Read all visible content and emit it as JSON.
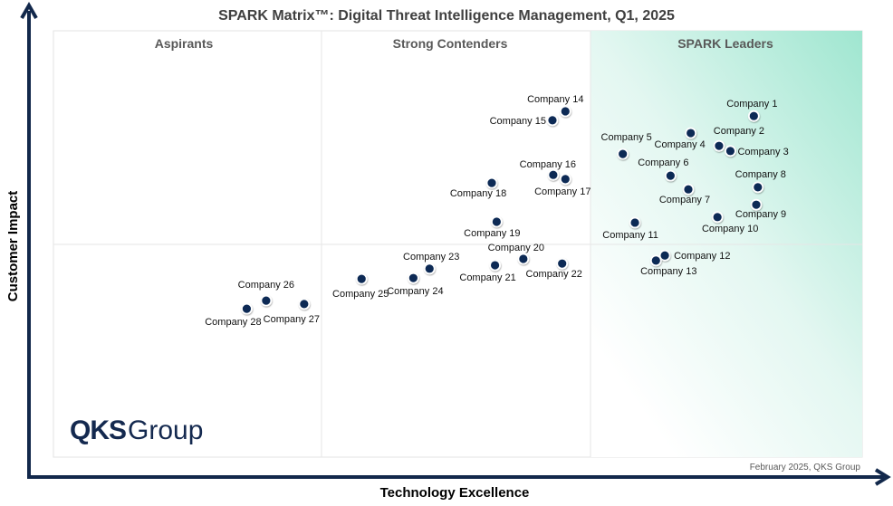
{
  "chart_data": {
    "type": "scatter",
    "title": "SPARK Matrix™: Digital Threat Intelligence Management, Q1, 2025",
    "xlabel": "Technology Excellence",
    "ylabel": "Customer Impact",
    "xlim": [
      0,
      100
    ],
    "ylim": [
      0,
      100
    ],
    "grid": false,
    "quadrants": [
      "Aspirants",
      "Strong Contenders",
      "SPARK Leaders"
    ],
    "footer": "February 2025, QKS Group",
    "logo": "QKS Group",
    "colors": {
      "point": "#0d2a55",
      "axis": "#12284b",
      "leaders_gradient": "#9fe6d0"
    },
    "points": [
      {
        "name": "Company 1",
        "x": 86.6,
        "y": 80.0
      },
      {
        "name": "Company 2",
        "x": 82.3,
        "y": 73.0
      },
      {
        "name": "Company 3",
        "x": 83.7,
        "y": 71.8
      },
      {
        "name": "Company 4",
        "x": 78.8,
        "y": 76.0
      },
      {
        "name": "Company 5",
        "x": 70.4,
        "y": 71.1
      },
      {
        "name": "Company 6",
        "x": 76.3,
        "y": 66.0
      },
      {
        "name": "Company 7",
        "x": 78.5,
        "y": 62.8
      },
      {
        "name": "Company 8",
        "x": 87.1,
        "y": 63.3
      },
      {
        "name": "Company 9",
        "x": 86.9,
        "y": 59.2
      },
      {
        "name": "Company 10",
        "x": 82.1,
        "y": 56.3
      },
      {
        "name": "Company 11",
        "x": 71.9,
        "y": 55.0
      },
      {
        "name": "Company 12",
        "x": 75.6,
        "y": 47.3
      },
      {
        "name": "Company 13",
        "x": 74.5,
        "y": 46.1
      },
      {
        "name": "Company 14",
        "x": 63.3,
        "y": 81.1
      },
      {
        "name": "Company 15",
        "x": 61.7,
        "y": 79.0
      },
      {
        "name": "Company 16",
        "x": 61.8,
        "y": 66.2
      },
      {
        "name": "Company 17",
        "x": 63.3,
        "y": 65.2
      },
      {
        "name": "Company 18",
        "x": 54.2,
        "y": 64.3
      },
      {
        "name": "Company 19",
        "x": 54.8,
        "y": 55.2
      },
      {
        "name": "Company 20",
        "x": 58.1,
        "y": 46.5
      },
      {
        "name": "Company 21",
        "x": 54.6,
        "y": 45.0
      },
      {
        "name": "Company 22",
        "x": 62.9,
        "y": 45.4
      },
      {
        "name": "Company 23",
        "x": 46.5,
        "y": 44.2
      },
      {
        "name": "Company 24",
        "x": 44.5,
        "y": 42.0
      },
      {
        "name": "Company 25",
        "x": 38.1,
        "y": 41.8
      },
      {
        "name": "Company 26",
        "x": 26.3,
        "y": 36.7
      },
      {
        "name": "Company 27",
        "x": 31.0,
        "y": 35.9
      },
      {
        "name": "Company 28",
        "x": 23.9,
        "y": 34.8
      }
    ]
  }
}
